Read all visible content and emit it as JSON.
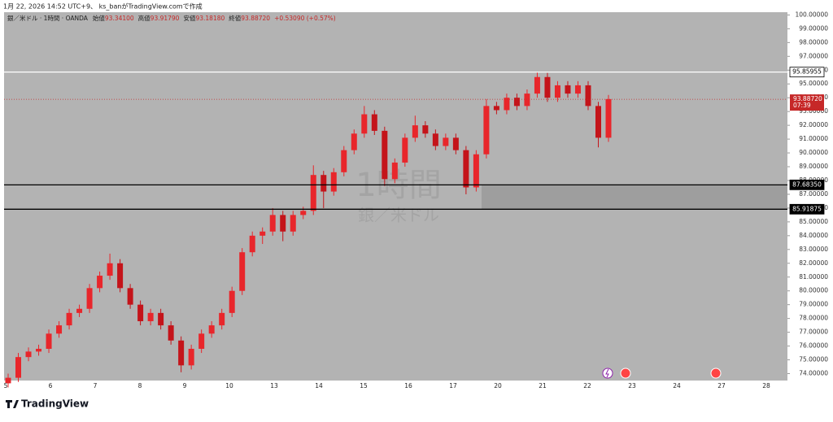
{
  "header": {
    "caption": "1月 22, 2026 14:52 UTC+9、 ks_banがTradingView.comで作成",
    "symbol": "銀／米ドル · 1時間 · OANDA",
    "open_label": "始値",
    "open": "93.34100",
    "high_label": "高値",
    "high": "93.91790",
    "low_label": "安値",
    "low": "93.18180",
    "close_label": "終値",
    "close": "93.88720",
    "change": "+0.53090 (+0.57%)"
  },
  "watermark": {
    "interval": "1時間",
    "symbol": "銀／米ドル"
  },
  "footer": {
    "brand": "TradingView"
  },
  "chart_data": {
    "type": "candlestick",
    "up_color": "#e8262b",
    "down_color": "#c4141a",
    "ylim": [
      73.5,
      100.2
    ],
    "yticks": [
      {
        "value": 74,
        "label": "74.00000"
      },
      {
        "value": 75,
        "label": "75.00000"
      },
      {
        "value": 76,
        "label": "76.00000"
      },
      {
        "value": 77,
        "label": "77.00000"
      },
      {
        "value": 78,
        "label": "78.00000"
      },
      {
        "value": 79,
        "label": "79.00000"
      },
      {
        "value": 80,
        "label": "80.00000"
      },
      {
        "value": 81,
        "label": "81.00000"
      },
      {
        "value": 82,
        "label": "82.00000"
      },
      {
        "value": 83,
        "label": "83.00000"
      },
      {
        "value": 84,
        "label": "84.00000"
      },
      {
        "value": 85,
        "label": "85.00000"
      },
      {
        "value": 86,
        "label": "86.00000"
      },
      {
        "value": 87,
        "label": "87.00000"
      },
      {
        "value": 88,
        "label": "88.00000"
      },
      {
        "value": 89,
        "label": "89.00000"
      },
      {
        "value": 90,
        "label": "90.00000"
      },
      {
        "value": 91,
        "label": "91.00000"
      },
      {
        "value": 92,
        "label": "92.00000"
      },
      {
        "value": 93,
        "label": "93.00000"
      },
      {
        "value": 94,
        "label": "94.00000"
      },
      {
        "value": 95,
        "label": "95.00000"
      },
      {
        "value": 96,
        "label": "96.00000"
      },
      {
        "value": 97,
        "label": "97.00000"
      },
      {
        "value": 98,
        "label": "98.00000"
      },
      {
        "value": 99,
        "label": "99.00000"
      },
      {
        "value": 100,
        "label": "100.00000"
      }
    ],
    "categories": [
      "5",
      "6",
      "7",
      "8",
      "9",
      "10",
      "13",
      "14",
      "15",
      "16",
      "17",
      "20",
      "21",
      "22",
      "23",
      "24",
      "27",
      "28"
    ],
    "ohlc": [
      [
        73.3,
        74.0,
        73.0,
        73.7
      ],
      [
        73.7,
        75.5,
        73.4,
        75.2
      ],
      [
        75.2,
        75.9,
        74.9,
        75.6
      ],
      [
        75.6,
        76.1,
        75.3,
        75.8
      ],
      [
        75.8,
        77.2,
        75.5,
        76.9
      ],
      [
        76.9,
        77.8,
        76.6,
        77.5
      ],
      [
        77.5,
        78.7,
        77.2,
        78.4
      ],
      [
        78.4,
        79.0,
        78.1,
        78.7
      ],
      [
        78.7,
        80.5,
        78.4,
        80.2
      ],
      [
        80.2,
        81.4,
        79.9,
        81.1
      ],
      [
        81.1,
        82.7,
        80.8,
        82.0
      ],
      [
        82.0,
        82.3,
        79.9,
        80.2
      ],
      [
        80.2,
        80.5,
        78.7,
        79.0
      ],
      [
        79.0,
        79.3,
        77.5,
        77.8
      ],
      [
        77.8,
        78.7,
        77.5,
        78.4
      ],
      [
        78.4,
        78.7,
        77.2,
        77.5
      ],
      [
        77.5,
        77.8,
        76.1,
        76.4
      ],
      [
        76.4,
        76.7,
        74.1,
        74.6
      ],
      [
        74.6,
        76.1,
        74.3,
        75.8
      ],
      [
        75.8,
        77.2,
        75.5,
        76.9
      ],
      [
        76.9,
        77.8,
        76.6,
        77.5
      ],
      [
        77.5,
        78.7,
        77.2,
        78.4
      ],
      [
        78.4,
        80.3,
        78.1,
        80.0
      ],
      [
        80.0,
        83.1,
        79.7,
        82.8
      ],
      [
        82.8,
        84.3,
        82.5,
        84.0
      ],
      [
        84.0,
        84.6,
        83.4,
        84.3
      ],
      [
        84.3,
        86.0,
        84.0,
        85.5
      ],
      [
        85.5,
        85.8,
        83.6,
        84.3
      ],
      [
        84.3,
        85.8,
        84.0,
        85.5
      ],
      [
        85.5,
        86.1,
        85.2,
        85.8
      ],
      [
        85.8,
        89.1,
        85.5,
        88.4
      ],
      [
        88.4,
        88.7,
        86.0,
        87.2
      ],
      [
        87.2,
        88.9,
        86.9,
        88.6
      ],
      [
        88.6,
        90.5,
        88.3,
        90.2
      ],
      [
        90.2,
        91.7,
        89.9,
        91.4
      ],
      [
        91.4,
        93.4,
        91.1,
        92.8
      ],
      [
        92.8,
        93.1,
        91.3,
        91.6
      ],
      [
        91.6,
        91.9,
        87.6,
        88.1
      ],
      [
        88.1,
        89.6,
        87.8,
        89.3
      ],
      [
        89.3,
        91.4,
        89.0,
        91.1
      ],
      [
        91.1,
        92.7,
        90.8,
        92.0
      ],
      [
        92.0,
        92.3,
        91.1,
        91.4
      ],
      [
        91.4,
        91.7,
        90.2,
        90.5
      ],
      [
        90.5,
        91.4,
        90.2,
        91.1
      ],
      [
        91.1,
        91.4,
        89.9,
        90.2
      ],
      [
        90.2,
        90.5,
        87.0,
        87.5
      ],
      [
        87.5,
        90.2,
        87.2,
        89.9
      ],
      [
        89.9,
        93.9,
        89.6,
        93.4
      ],
      [
        93.4,
        93.7,
        92.8,
        93.1
      ],
      [
        93.1,
        94.3,
        92.8,
        94.0
      ],
      [
        94.0,
        94.3,
        93.1,
        93.4
      ],
      [
        93.4,
        94.6,
        93.1,
        94.3
      ],
      [
        94.3,
        95.9,
        94.0,
        95.5
      ],
      [
        95.5,
        95.8,
        93.7,
        94.0
      ],
      [
        94.0,
        95.2,
        93.7,
        94.9
      ],
      [
        94.9,
        95.2,
        94.0,
        94.3
      ],
      [
        94.3,
        95.2,
        94.0,
        94.9
      ],
      [
        94.9,
        95.2,
        93.1,
        93.4
      ],
      [
        93.4,
        93.7,
        90.4,
        91.1
      ],
      [
        91.1,
        94.2,
        90.8,
        93.9
      ]
    ],
    "hlines": [
      {
        "value": 95.85955,
        "label": "95.85955",
        "color": "#ffffff"
      },
      {
        "value": 87.6835,
        "label": "87.68350",
        "color": "#000000"
      },
      {
        "value": 85.91875,
        "label": "85.91875",
        "color": "#000000"
      }
    ],
    "last_price": {
      "value": 93.8872,
      "label": "93.88720",
      "countdown": "07:39",
      "color": "#c62828"
    }
  }
}
